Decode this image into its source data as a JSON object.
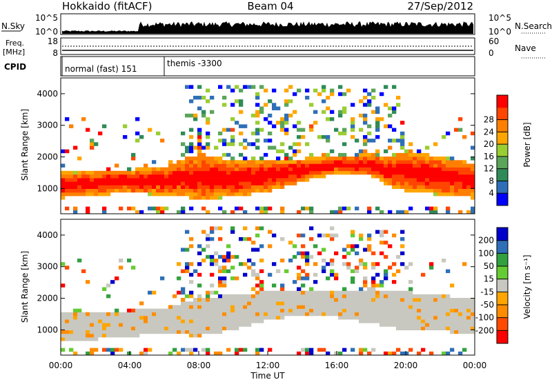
{
  "header": {
    "title_left": "Hokkaido (fitACF)",
    "title_center": "Beam 04",
    "title_right": "27/Sep/2012"
  },
  "noise_panel": {
    "left_label": "N.Sky",
    "right_label": "N.Search",
    "left_ticks": [
      "10^5",
      "10^0"
    ],
    "right_ticks": [
      "10^5",
      "10^0"
    ]
  },
  "freq_panel": {
    "left_label_1": "Freq.",
    "left_label_2": "[MHz]",
    "right_label": "Nave",
    "left_ticks": [
      "18",
      "8"
    ],
    "right_ticks": [
      "60",
      "0"
    ]
  },
  "cpid_panel": {
    "label": "CPID",
    "programs": [
      {
        "name": "normal (fast) 151",
        "start_hour": 0
      },
      {
        "name": "themis -3300",
        "start_hour": 6
      }
    ]
  },
  "colors": {
    "power_bar": [
      "#0000ff",
      "#2e6fb8",
      "#2e8b57",
      "#5aa55a",
      "#9acd32",
      "#ffa500",
      "#ff7f00",
      "#ff4500",
      "#ff0000"
    ],
    "velocity_bar": [
      "#ff0000",
      "#ff4a00",
      "#ff8c00",
      "#ffa500",
      "#c8c8c0",
      "#66cc33",
      "#33a040",
      "#2e6fb8",
      "#0000cc"
    ],
    "ground_scatter": "#c8c8c0"
  },
  "chart_data": [
    {
      "type": "heatmap",
      "name": "power",
      "xlabel": "",
      "ylabel": "Slant Range [km]",
      "xlim": [
        0,
        24
      ],
      "ylim": [
        200,
        4500
      ],
      "y_ticks": [
        1000,
        2000,
        3000,
        4000
      ],
      "colorbar_label": "Power [dB]",
      "colorbar_ticks": [
        4,
        8,
        12,
        16,
        20,
        24,
        28
      ],
      "colorbar_range": [
        0,
        30
      ],
      "main_echo_band": {
        "hours": [
          0,
          2,
          4,
          6,
          7.5,
          8,
          10,
          12,
          14,
          16,
          18,
          19,
          20,
          22,
          24
        ],
        "lower_km": [
          700,
          800,
          850,
          800,
          700,
          600,
          750,
          900,
          1200,
          1500,
          1400,
          1100,
          900,
          800,
          700
        ],
        "upper_km": [
          1500,
          1550,
          1600,
          1700,
          2000,
          2100,
          1900,
          1900,
          1950,
          2000,
          2100,
          2000,
          2200,
          2000,
          1800
        ]
      }
    },
    {
      "type": "heatmap",
      "name": "velocity",
      "xlabel": "Time UT",
      "ylabel": "Slant Range [km]",
      "xlim": [
        0,
        24
      ],
      "ylim": [
        200,
        4500
      ],
      "x_tick_labels": [
        "00:00",
        "04:00",
        "08:00",
        "12:00",
        "16:00",
        "20:00",
        "00:00"
      ],
      "y_ticks": [
        1000,
        2000,
        3000,
        4000
      ],
      "colorbar_label": "Velocity [m s⁻¹]",
      "colorbar_ticks": [
        "200",
        "100",
        "50",
        "15",
        "-15",
        "-50",
        "-100",
        "-200"
      ],
      "ground_scatter_band": {
        "hours": [
          0,
          4,
          6,
          8,
          10,
          12,
          14,
          16,
          18,
          20,
          24
        ],
        "lower_km": [
          600,
          800,
          900,
          800,
          1000,
          1300,
          1500,
          1400,
          1200,
          1000,
          900
        ],
        "upper_km": [
          1500,
          1600,
          1700,
          2000,
          2100,
          2200,
          2200,
          2250,
          2300,
          2200,
          2000
        ]
      }
    }
  ]
}
